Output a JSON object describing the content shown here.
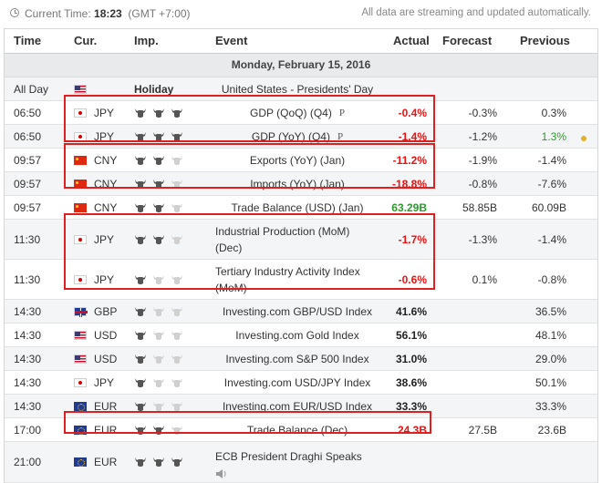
{
  "topbar": {
    "label": "Current Time:",
    "time": "18:23",
    "tz": "(GMT +7:00)",
    "notice": "All data are streaming and updated automatically."
  },
  "columns": {
    "time": "Time",
    "cur": "Cur.",
    "imp": "Imp.",
    "event": "Event",
    "actual": "Actual",
    "forecast": "Forecast",
    "previous": "Previous"
  },
  "date": "Monday, February 15, 2016",
  "rows": [
    {
      "time": "All Day",
      "flag": "us",
      "cur": "",
      "imp": "Holiday",
      "event": "United States - Presidents' Day",
      "actual": "",
      "forecast": "",
      "previous": ""
    },
    {
      "time": "06:50",
      "flag": "jp",
      "cur": "JPY",
      "bulls": 3,
      "event": "GDP (QoQ) (Q4)",
      "tag": "P",
      "actual": "-0.4%",
      "actual_color": "red",
      "forecast": "-0.3%",
      "previous": "0.3%"
    },
    {
      "time": "06:50",
      "flag": "jp",
      "cur": "JPY",
      "bulls": 3,
      "event": "GDP (YoY) (Q4)",
      "tag": "P",
      "actual": "-1.4%",
      "actual_color": "red",
      "forecast": "-1.2%",
      "previous": "1.3%",
      "previous_color": "green",
      "dot": true
    },
    {
      "time": "09:57",
      "flag": "cn",
      "cur": "CNY",
      "bulls": 2,
      "event": "Exports (YoY) (Jan)",
      "actual": "-11.2%",
      "actual_color": "red",
      "forecast": "-1.9%",
      "previous": "-1.4%"
    },
    {
      "time": "09:57",
      "flag": "cn",
      "cur": "CNY",
      "bulls": 2,
      "event": "Imports (YoY) (Jan)",
      "actual": "-18.8%",
      "actual_color": "red",
      "forecast": "-0.8%",
      "previous": "-7.6%"
    },
    {
      "time": "09:57",
      "flag": "cn",
      "cur": "CNY",
      "bulls": 2,
      "event": "Trade Balance (USD) (Jan)",
      "actual": "63.29B",
      "actual_color": "green",
      "forecast": "58.85B",
      "previous": "60.09B"
    },
    {
      "time": "11:30",
      "flag": "jp",
      "cur": "JPY",
      "bulls": 2,
      "event": "Industrial Production (MoM) (Dec)",
      "actual": "-1.7%",
      "actual_color": "red",
      "forecast": "-1.3%",
      "previous": "-1.4%"
    },
    {
      "time": "11:30",
      "flag": "jp",
      "cur": "JPY",
      "bulls": 1,
      "event": "Tertiary Industry Activity Index (MoM)",
      "actual": "-0.6%",
      "actual_color": "red",
      "forecast": "0.1%",
      "previous": "-0.8%"
    },
    {
      "time": "14:30",
      "flag": "gb",
      "cur": "GBP",
      "bulls": 1,
      "event": "Investing.com GBP/USD Index",
      "actual": "41.6%",
      "actual_color": "black",
      "forecast": "",
      "previous": "36.5%"
    },
    {
      "time": "14:30",
      "flag": "us",
      "cur": "USD",
      "bulls": 1,
      "event": "Investing.com Gold Index",
      "actual": "56.1%",
      "actual_color": "black",
      "forecast": "",
      "previous": "48.1%"
    },
    {
      "time": "14:30",
      "flag": "us",
      "cur": "USD",
      "bulls": 1,
      "event": "Investing.com S&P 500 Index",
      "actual": "31.0%",
      "actual_color": "black",
      "forecast": "",
      "previous": "29.0%"
    },
    {
      "time": "14:30",
      "flag": "jp",
      "cur": "JPY",
      "bulls": 1,
      "event": "Investing.com USD/JPY Index",
      "actual": "38.6%",
      "actual_color": "black",
      "forecast": "",
      "previous": "50.1%"
    },
    {
      "time": "14:30",
      "flag": "eu",
      "cur": "EUR",
      "bulls": 1,
      "event": "Investing.com EUR/USD Index",
      "actual": "33.3%",
      "actual_color": "black",
      "forecast": "",
      "previous": "33.3%"
    },
    {
      "time": "17:00",
      "flag": "eu",
      "cur": "EUR",
      "bulls": 2,
      "event": "Trade Balance (Dec)",
      "actual": "24.3B",
      "actual_color": "red",
      "forecast": "27.5B",
      "previous": "23.6B"
    },
    {
      "time": "21:00",
      "flag": "eu",
      "cur": "EUR",
      "bulls": 3,
      "event": "ECB President Draghi Speaks",
      "speaker": true,
      "actual": "",
      "forecast": "",
      "previous": ""
    }
  ],
  "colors": {
    "red": "#e11111",
    "green": "#2b9b2b",
    "highlight_box": "#e02020",
    "bull_on": "#555555",
    "bull_off": "#d0d0d0"
  }
}
